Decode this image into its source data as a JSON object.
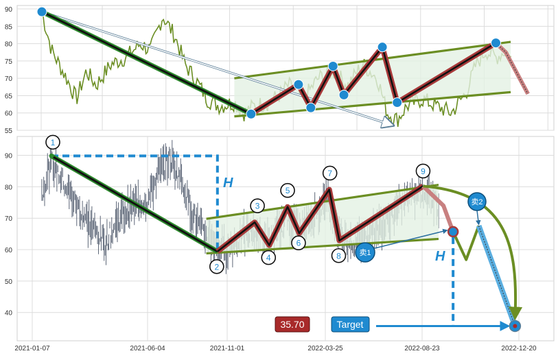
{
  "chart_data": [
    {
      "type": "line",
      "panel": "top",
      "title": "",
      "xlabel": "",
      "ylabel": "",
      "ylim": [
        55,
        91
      ],
      "y_ticks": [
        55,
        60,
        65,
        70,
        75,
        80,
        85,
        90
      ],
      "grid": true,
      "series_color": "#6b8e23",
      "pattern": {
        "downtrend": [
          {
            "x": 0,
            "y": 89.2
          },
          {
            "x": 0.424,
            "y": 59.7
          }
        ],
        "zigzag": [
          {
            "x": 0.424,
            "y": 59.7
          },
          {
            "x": 0.52,
            "y": 68.2
          },
          {
            "x": 0.545,
            "y": 61.5
          },
          {
            "x": 0.59,
            "y": 73.5
          },
          {
            "x": 0.612,
            "y": 65.2
          },
          {
            "x": 0.69,
            "y": 79.0
          },
          {
            "x": 0.72,
            "y": 63.0
          },
          {
            "x": 0.92,
            "y": 80.2
          }
        ],
        "extension": [
          {
            "x": 0.92,
            "y": 80.2
          },
          {
            "x": 0.94,
            "y": 77.5
          },
          {
            "x": 0.985,
            "y": 65.5
          }
        ],
        "channel_upper": [
          {
            "x": 0.39,
            "y": 70.0
          },
          {
            "x": 0.95,
            "y": 80.5
          }
        ],
        "channel_lower": [
          {
            "x": 0.39,
            "y": 59.0
          },
          {
            "x": 0.95,
            "y": 66.0
          }
        ],
        "arrow": [
          {
            "x": 0.0,
            "y": 89.2
          },
          {
            "x": 0.71,
            "y": 56.5
          }
        ],
        "markers": [
          {
            "x": 0.0,
            "y": 89.2
          },
          {
            "x": 0.424,
            "y": 59.7
          },
          {
            "x": 0.52,
            "y": 68.2
          },
          {
            "x": 0.545,
            "y": 61.5
          },
          {
            "x": 0.59,
            "y": 73.5
          },
          {
            "x": 0.612,
            "y": 65.2
          },
          {
            "x": 0.69,
            "y": 79.0
          },
          {
            "x": 0.72,
            "y": 63.0
          },
          {
            "x": 0.92,
            "y": 80.2
          }
        ]
      }
    },
    {
      "type": "line",
      "panel": "bottom",
      "title": "",
      "xlabel": "",
      "ylabel": "",
      "ylim": [
        31,
        96
      ],
      "y_ticks": [
        40,
        50,
        60,
        70,
        80,
        90
      ],
      "x_ticks": [
        "2021-01-07",
        "2021-06-04",
        "2021-11-01",
        "2022-03-25",
        "2022-08-23",
        "2022-12-20"
      ],
      "grid": true,
      "series_color": "#4a5568",
      "waves": [
        {
          "label": "1",
          "x": 0.0,
          "y": 89.8
        },
        {
          "label": "2",
          "x": 0.343,
          "y": 59.4
        },
        {
          "label": "3",
          "x": 0.42,
          "y": 68.7
        },
        {
          "label": "4",
          "x": 0.45,
          "y": 61.4
        },
        {
          "label": "5",
          "x": 0.488,
          "y": 73.6
        },
        {
          "label": "6",
          "x": 0.512,
          "y": 65.2
        },
        {
          "label": "7",
          "x": 0.574,
          "y": 79.1
        },
        {
          "label": "8",
          "x": 0.595,
          "y": 62.9
        },
        {
          "label": "9",
          "x": 0.768,
          "y": 80.2
        }
      ],
      "projection": [
        {
          "x": 0.768,
          "y": 80.2
        },
        {
          "x": 0.81,
          "y": 74.0
        },
        {
          "x": 0.83,
          "y": 65.7
        },
        {
          "x": 0.857,
          "y": 56.8
        },
        {
          "x": 0.883,
          "y": 67.6
        },
        {
          "x": 0.958,
          "y": 35.7
        }
      ],
      "channel_upper": [
        {
          "x": 0.32,
          "y": 69.8
        },
        {
          "x": 0.8,
          "y": 80.6
        }
      ],
      "channel_lower": [
        {
          "x": 0.32,
          "y": 58.8
        },
        {
          "x": 0.8,
          "y": 63.4
        }
      ],
      "height_marker_label": "H",
      "target": {
        "value": "35.70",
        "label": "Target",
        "y": 35.7
      },
      "sell_signals": [
        {
          "label": "卖1",
          "x": 0.67,
          "y": 59.9
        },
        {
          "label": "卖2",
          "x": 0.883,
          "y": 75.6
        }
      ]
    }
  ],
  "colors": {
    "grid": "#dcdcdc",
    "axis_text": "#333333",
    "green_band": "#2d8a2d",
    "black_line": "#111111",
    "red_band": "#a83a3a",
    "channel": "#6b8e23",
    "channel_fill": "#e3f1e3",
    "marker_blue": "#1f8ad0",
    "dashed_blue": "#1f8ad0",
    "target_red": "#a82a2a",
    "curve_olive": "#6b8e23",
    "label_blue": "#1f8ad0"
  }
}
